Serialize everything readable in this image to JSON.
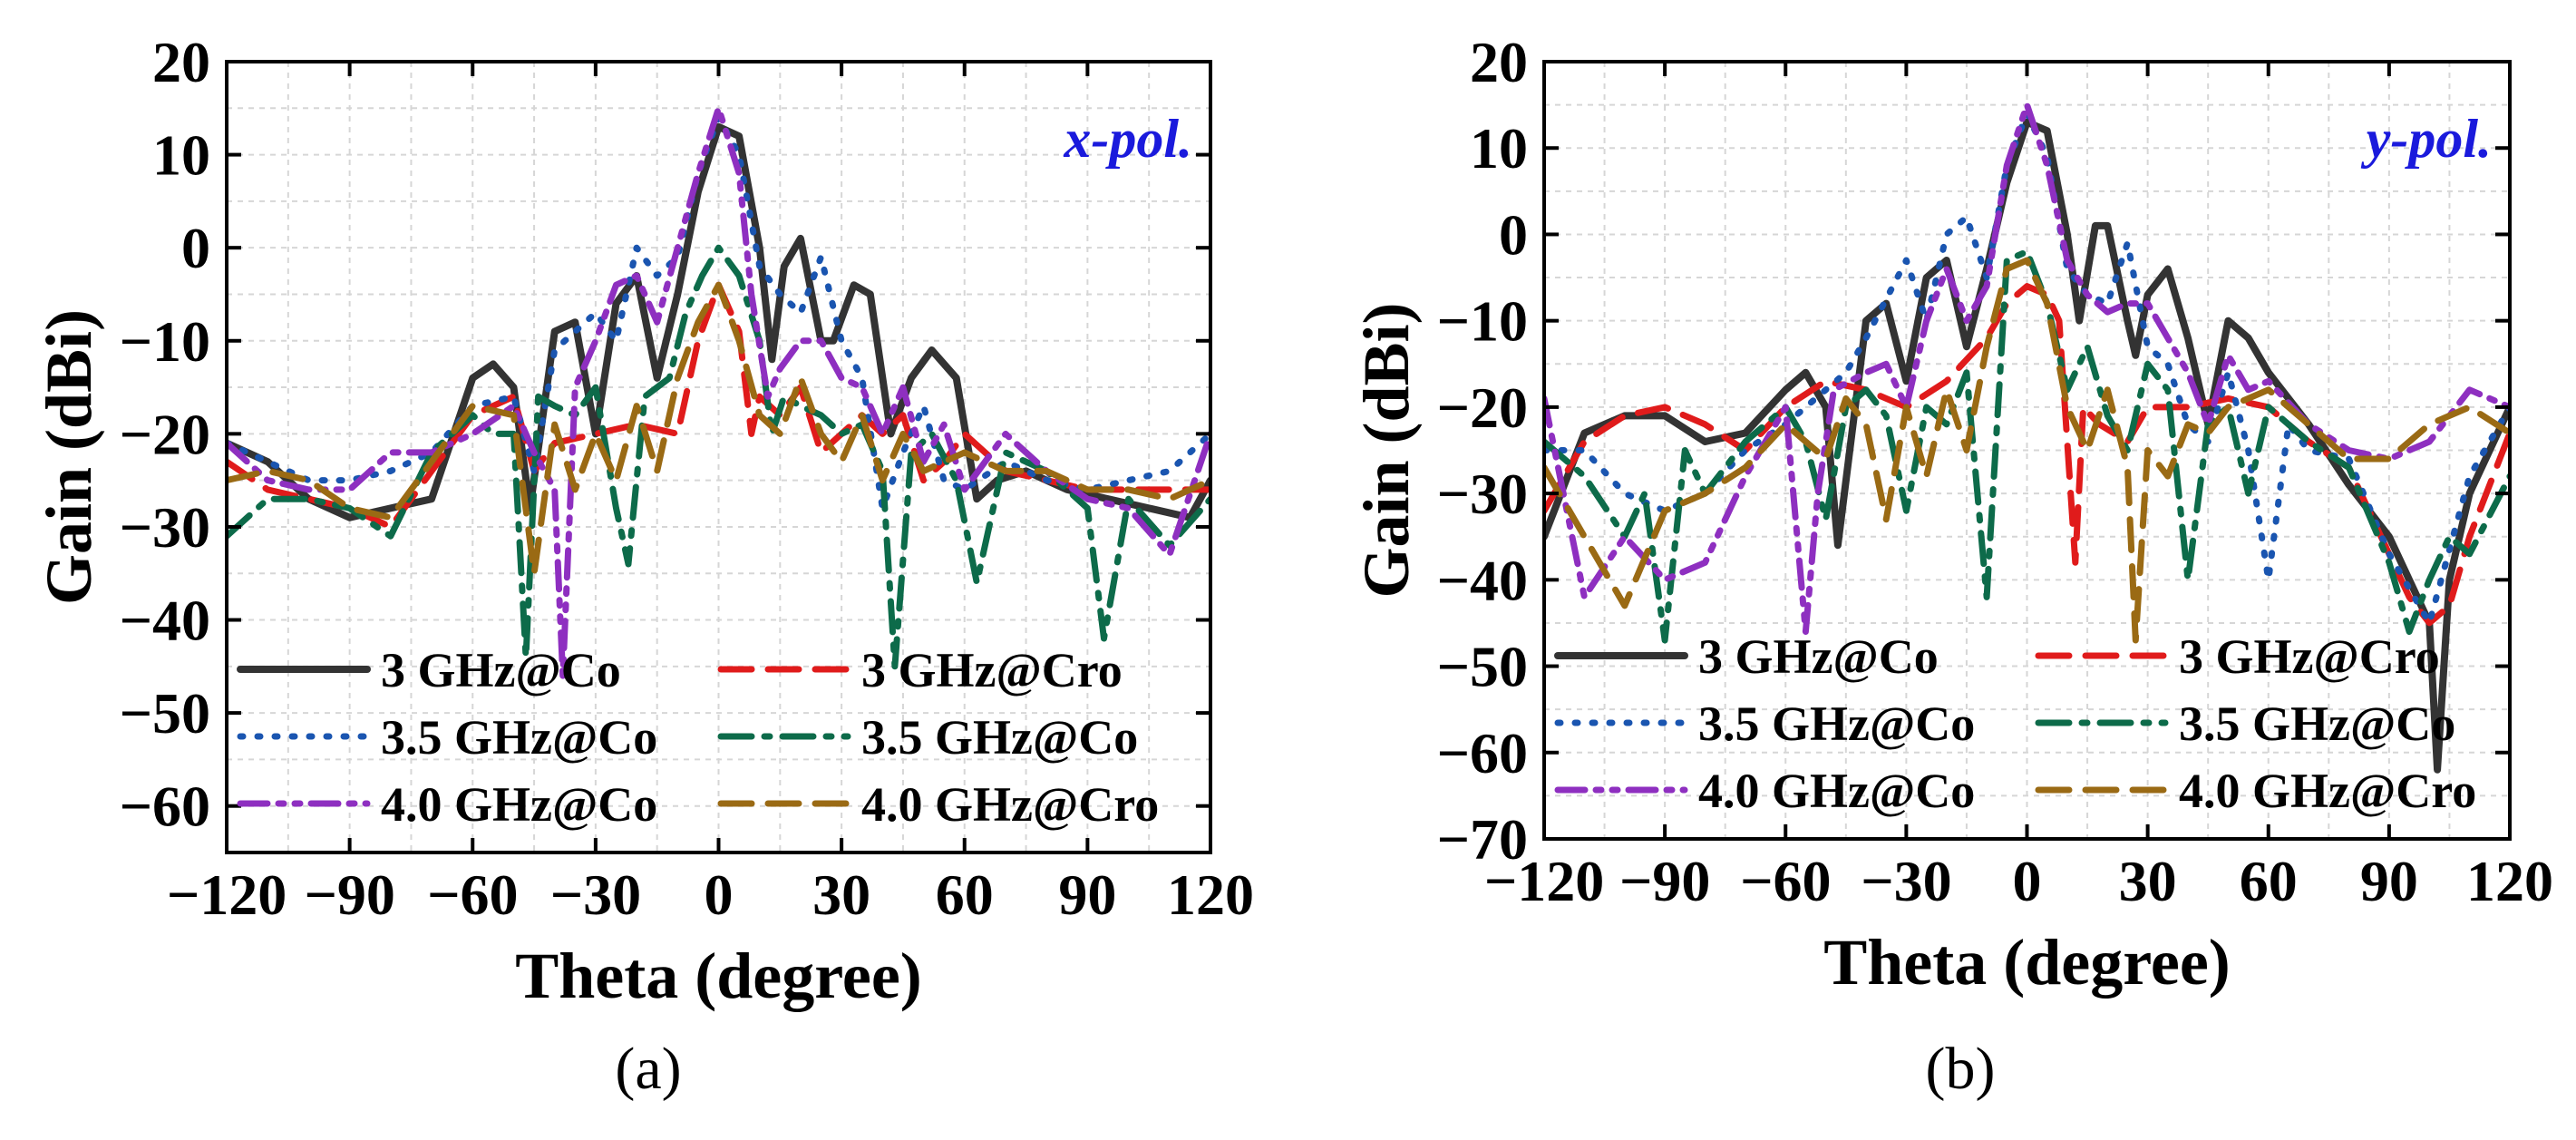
{
  "figure": {
    "subcaptions": [
      "(a)",
      "(b)"
    ]
  },
  "chart_data": [
    {
      "type": "line",
      "subcaption": "(a)",
      "annotation": "x-pol.",
      "annotation_color": "#1a1adc",
      "xlabel": "Theta (degree)",
      "ylabel": "Gain (dBi)",
      "xlim": [
        -120,
        120
      ],
      "ylim": [
        -65,
        20
      ],
      "xticks": [
        -120,
        -90,
        -60,
        -30,
        0,
        30,
        60,
        90,
        120
      ],
      "xtick_labels": [
        "−120",
        "−90",
        "−60",
        "−30",
        "0",
        "30",
        "60",
        "90",
        "120"
      ],
      "yticks": [
        -60,
        -50,
        -40,
        -30,
        -20,
        -10,
        0,
        10,
        20
      ],
      "ytick_labels": [
        "−60",
        "−50",
        "−40",
        "−30",
        "−20",
        "−10",
        "0",
        "10",
        "20"
      ],
      "grid": true,
      "legend_position": "bottom-left",
      "series": [
        {
          "name": "3 GHz@Co",
          "color": "#333333",
          "style": "solid",
          "x": [
            -120,
            -110,
            -100,
            -90,
            -80,
            -70,
            -60,
            -55,
            -50,
            -46,
            -40,
            -35,
            -30,
            -25,
            -20,
            -15,
            -10,
            -5,
            0,
            5,
            10,
            13,
            16,
            20,
            25,
            28,
            33,
            37,
            42,
            47,
            52,
            58,
            63,
            68,
            75,
            85,
            95,
            105,
            115,
            120
          ],
          "y": [
            -21,
            -23,
            -27,
            -29,
            -28,
            -27,
            -14,
            -12.5,
            -15,
            -28,
            -9,
            -8,
            -20,
            -6,
            -3,
            -14,
            -5,
            6,
            13,
            12,
            0,
            -12,
            -2,
            1,
            -10,
            -10,
            -4,
            -5,
            -20,
            -14,
            -11,
            -14,
            -27,
            -25,
            -24,
            -26,
            -27,
            -28,
            -29,
            -25
          ]
        },
        {
          "name": "3 GHz@Cro",
          "color": "#e01b1b",
          "style": "dash",
          "x": [
            -120,
            -110,
            -100,
            -90,
            -80,
            -70,
            -60,
            -50,
            -45,
            -40,
            -30,
            -20,
            -10,
            -5,
            0,
            5,
            8,
            10,
            15,
            20,
            25,
            30,
            35,
            40,
            45,
            50,
            55,
            60,
            70,
            80,
            90,
            100,
            110,
            120
          ],
          "y": [
            -23,
            -26,
            -27,
            -28,
            -30,
            -24,
            -18,
            -16,
            -24,
            -21,
            -20,
            -19,
            -20,
            -10,
            -4,
            -9,
            -20,
            -16,
            -18,
            -15,
            -22,
            -20,
            -18,
            -20,
            -18,
            -25,
            -23,
            -20,
            -24,
            -25,
            -26,
            -26,
            -26,
            -26
          ]
        },
        {
          "name": "3.5 GHz@Co",
          "color": "#1a55b0",
          "style": "dot",
          "x": [
            -120,
            -110,
            -100,
            -90,
            -80,
            -70,
            -60,
            -50,
            -45,
            -40,
            -30,
            -25,
            -20,
            -15,
            -10,
            -5,
            0,
            5,
            10,
            15,
            20,
            25,
            30,
            35,
            40,
            45,
            50,
            55,
            60,
            70,
            80,
            90,
            100,
            110,
            120
          ],
          "y": [
            -21,
            -23,
            -25,
            -25,
            -24,
            -22,
            -17,
            -16,
            -24,
            -11,
            -7,
            -10,
            0,
            -3,
            -1,
            8,
            14,
            10,
            -2,
            -5,
            -7,
            -1,
            -10,
            -14,
            -28,
            -22,
            -17,
            -25,
            -26,
            -23,
            -25,
            -26,
            -25,
            -24,
            -20
          ]
        },
        {
          "name": "3.5 GHz@Co",
          "color": "#0d6b4a",
          "style": "dashdot",
          "x": [
            -120,
            -110,
            -100,
            -90,
            -80,
            -70,
            -60,
            -55,
            -50,
            -47,
            -44,
            -40,
            -35,
            -30,
            -25,
            -22,
            -18,
            -12,
            -8,
            -4,
            0,
            5,
            10,
            13,
            16,
            20,
            25,
            30,
            35,
            40,
            43,
            47,
            52,
            58,
            63,
            70,
            80,
            90,
            94,
            100,
            110,
            120
          ],
          "y": [
            -31,
            -27,
            -27,
            -28,
            -31,
            -22,
            -18,
            -20,
            -20,
            -44,
            -16,
            -17,
            -18,
            -15,
            -28,
            -34,
            -16,
            -14,
            -7,
            -3,
            0,
            -3,
            -10,
            -20,
            -16,
            -17,
            -18,
            -20,
            -19,
            -24,
            -45,
            -22,
            -20,
            -25,
            -36,
            -22,
            -24,
            -28,
            -42,
            -27,
            -32,
            -27
          ]
        },
        {
          "name": "4.0 GHz@Co",
          "color": "#8e2fc0",
          "style": "dashdotdot",
          "x": [
            -120,
            -110,
            -100,
            -90,
            -80,
            -70,
            -60,
            -50,
            -45,
            -40,
            -38,
            -35,
            -30,
            -25,
            -20,
            -15,
            -10,
            -5,
            0,
            5,
            8,
            12,
            15,
            20,
            25,
            30,
            35,
            40,
            45,
            50,
            55,
            60,
            70,
            80,
            90,
            100,
            110,
            120
          ],
          "y": [
            -21,
            -25,
            -26,
            -26,
            -22,
            -22,
            -20,
            -17,
            -22,
            -26,
            -46,
            -15,
            -10,
            -4,
            -3,
            -8,
            0,
            8,
            15,
            8,
            -5,
            -16,
            -13,
            -10,
            -10,
            -14,
            -15,
            -20,
            -15,
            -23,
            -19,
            -26,
            -20,
            -24,
            -27,
            -28,
            -33,
            -20
          ]
        },
        {
          "name": "4.0 GHz@Cro",
          "color": "#9a6a14",
          "style": "dash",
          "x": [
            -120,
            -110,
            -100,
            -90,
            -80,
            -70,
            -60,
            -50,
            -45,
            -40,
            -35,
            -30,
            -25,
            -20,
            -15,
            -10,
            -5,
            0,
            5,
            10,
            15,
            20,
            25,
            30,
            35,
            40,
            45,
            50,
            60,
            70,
            80,
            90,
            100,
            110,
            120
          ],
          "y": [
            -25,
            -24,
            -25,
            -28,
            -29,
            -23,
            -17,
            -18,
            -35,
            -19,
            -26,
            -20,
            -25,
            -17,
            -24,
            -14,
            -8,
            -4,
            -10,
            -18,
            -20,
            -14,
            -20,
            -23,
            -18,
            -25,
            -20,
            -24,
            -22,
            -24,
            -24,
            -26,
            -26,
            -27,
            -25
          ]
        }
      ]
    },
    {
      "type": "line",
      "subcaption": "(b)",
      "annotation": "y-pol.",
      "annotation_color": "#1a1adc",
      "xlabel": "Theta (degree)",
      "ylabel": "Gain (dBi)",
      "xlim": [
        -120,
        120
      ],
      "ylim": [
        -70,
        20
      ],
      "xticks": [
        -120,
        -90,
        -60,
        -30,
        0,
        30,
        60,
        90,
        120
      ],
      "xtick_labels": [
        "−120",
        "−90",
        "−60",
        "−30",
        "0",
        "30",
        "60",
        "90",
        "120"
      ],
      "yticks": [
        -70,
        -60,
        -50,
        -40,
        -30,
        -20,
        -10,
        0,
        10,
        20
      ],
      "ytick_labels": [
        "−70",
        "−60",
        "−50",
        "−40",
        "−30",
        "−20",
        "−10",
        "0",
        "10",
        "20"
      ],
      "grid": true,
      "legend_position": "bottom-left",
      "series": [
        {
          "name": "3 GHz@Co",
          "color": "#333333",
          "style": "solid",
          "x": [
            -120,
            -110,
            -100,
            -90,
            -80,
            -70,
            -60,
            -55,
            -50,
            -47,
            -40,
            -35,
            -30,
            -25,
            -20,
            -15,
            -10,
            -5,
            0,
            5,
            10,
            13,
            17,
            20,
            25,
            27,
            30,
            35,
            40,
            45,
            50,
            55,
            60,
            70,
            80,
            90,
            95,
            100,
            102,
            105,
            110,
            120
          ],
          "y": [
            -35,
            -23,
            -21,
            -21,
            -24,
            -23,
            -18,
            -16,
            -20,
            -36,
            -10,
            -8,
            -17,
            -5,
            -3,
            -13,
            -4,
            6,
            13,
            12,
            0,
            -10,
            1,
            1,
            -10,
            -14,
            -7,
            -4,
            -12,
            -22,
            -10,
            -12,
            -16,
            -22,
            -29,
            -35,
            -40,
            -45,
            -62,
            -40,
            -30,
            -20
          ]
        },
        {
          "name": "3 GHz@Cro",
          "color": "#e01b1b",
          "style": "dash",
          "x": [
            -120,
            -110,
            -100,
            -90,
            -80,
            -70,
            -60,
            -50,
            -40,
            -30,
            -20,
            -10,
            -5,
            0,
            5,
            8,
            12,
            14,
            18,
            25,
            30,
            40,
            50,
            60,
            70,
            80,
            90,
            95,
            100,
            105,
            110,
            120
          ],
          "y": [
            -32,
            -24,
            -21,
            -20,
            -22,
            -25,
            -20,
            -17,
            -18,
            -20,
            -17,
            -12,
            -8,
            -6,
            -7,
            -10,
            -38,
            -20,
            -22,
            -24,
            -20,
            -20,
            -19,
            -20,
            -24,
            -27,
            -37,
            -42,
            -45,
            -43,
            -35,
            -23
          ]
        },
        {
          "name": "3.5 GHz@Co",
          "color": "#1a55b0",
          "style": "dot",
          "x": [
            -120,
            -110,
            -100,
            -90,
            -80,
            -70,
            -60,
            -50,
            -45,
            -40,
            -30,
            -25,
            -20,
            -15,
            -10,
            -5,
            0,
            5,
            10,
            15,
            20,
            25,
            30,
            35,
            40,
            45,
            50,
            55,
            60,
            65,
            70,
            80,
            90,
            100,
            110,
            120
          ],
          "y": [
            -25,
            -25,
            -30,
            -32,
            -30,
            -25,
            -22,
            -18,
            -16,
            -12,
            -3,
            -10,
            0,
            2,
            -5,
            8,
            14,
            9,
            -4,
            -7,
            -8,
            -1,
            -13,
            -15,
            -22,
            -24,
            -16,
            -25,
            -40,
            -22,
            -25,
            -26,
            -37,
            -45,
            -28,
            -20
          ]
        },
        {
          "name": "3.5 GHz@Co",
          "color": "#0d6b4a",
          "style": "dashdot",
          "x": [
            -120,
            -110,
            -100,
            -95,
            -90,
            -85,
            -80,
            -70,
            -60,
            -55,
            -50,
            -45,
            -40,
            -35,
            -30,
            -25,
            -20,
            -15,
            -10,
            -5,
            0,
            5,
            10,
            15,
            20,
            25,
            30,
            35,
            40,
            45,
            50,
            55,
            60,
            70,
            80,
            90,
            95,
            100,
            105,
            110,
            120
          ],
          "y": [
            -24,
            -28,
            -35,
            -30,
            -47,
            -25,
            -30,
            -24,
            -20,
            -24,
            -33,
            -20,
            -18,
            -21,
            -32,
            -20,
            -22,
            -16,
            -42,
            -3,
            -2,
            -8,
            -18,
            -13,
            -21,
            -25,
            -15,
            -18,
            -40,
            -22,
            -20,
            -30,
            -20,
            -24,
            -27,
            -38,
            -46,
            -40,
            -35,
            -37,
            -28
          ]
        },
        {
          "name": "4.0 GHz@Co",
          "color": "#8e2fc0",
          "style": "dashdotdot",
          "x": [
            -120,
            -110,
            -100,
            -90,
            -80,
            -70,
            -60,
            -55,
            -52,
            -48,
            -40,
            -35,
            -30,
            -25,
            -20,
            -15,
            -10,
            -5,
            0,
            5,
            10,
            15,
            20,
            25,
            30,
            35,
            40,
            45,
            50,
            55,
            60,
            70,
            80,
            90,
            100,
            110,
            120
          ],
          "y": [
            -19,
            -42,
            -35,
            -40,
            -38,
            -28,
            -20,
            -46,
            -30,
            -18,
            -16,
            -15,
            -20,
            -10,
            -4,
            -10,
            -6,
            8,
            15,
            8,
            -3,
            -7,
            -9,
            -8,
            -8,
            -12,
            -16,
            -22,
            -14,
            -18,
            -17,
            -22,
            -25,
            -26,
            -24,
            -18,
            -20
          ]
        },
        {
          "name": "4.0 GHz@Cro",
          "color": "#9a6a14",
          "style": "dash",
          "x": [
            -120,
            -110,
            -100,
            -90,
            -80,
            -70,
            -60,
            -50,
            -45,
            -40,
            -35,
            -30,
            -25,
            -20,
            -15,
            -10,
            -5,
            0,
            5,
            10,
            15,
            20,
            25,
            27,
            30,
            35,
            40,
            45,
            50,
            60,
            70,
            80,
            90,
            100,
            110,
            120
          ],
          "y": [
            -27,
            -35,
            -43,
            -32,
            -30,
            -27,
            -22,
            -26,
            -19,
            -22,
            -33,
            -20,
            -28,
            -18,
            -25,
            -13,
            -4,
            -3,
            -8,
            -20,
            -25,
            -18,
            -27,
            -47,
            -25,
            -28,
            -22,
            -23,
            -20,
            -18,
            -22,
            -26,
            -26,
            -22,
            -20,
            -23
          ]
        }
      ]
    }
  ]
}
